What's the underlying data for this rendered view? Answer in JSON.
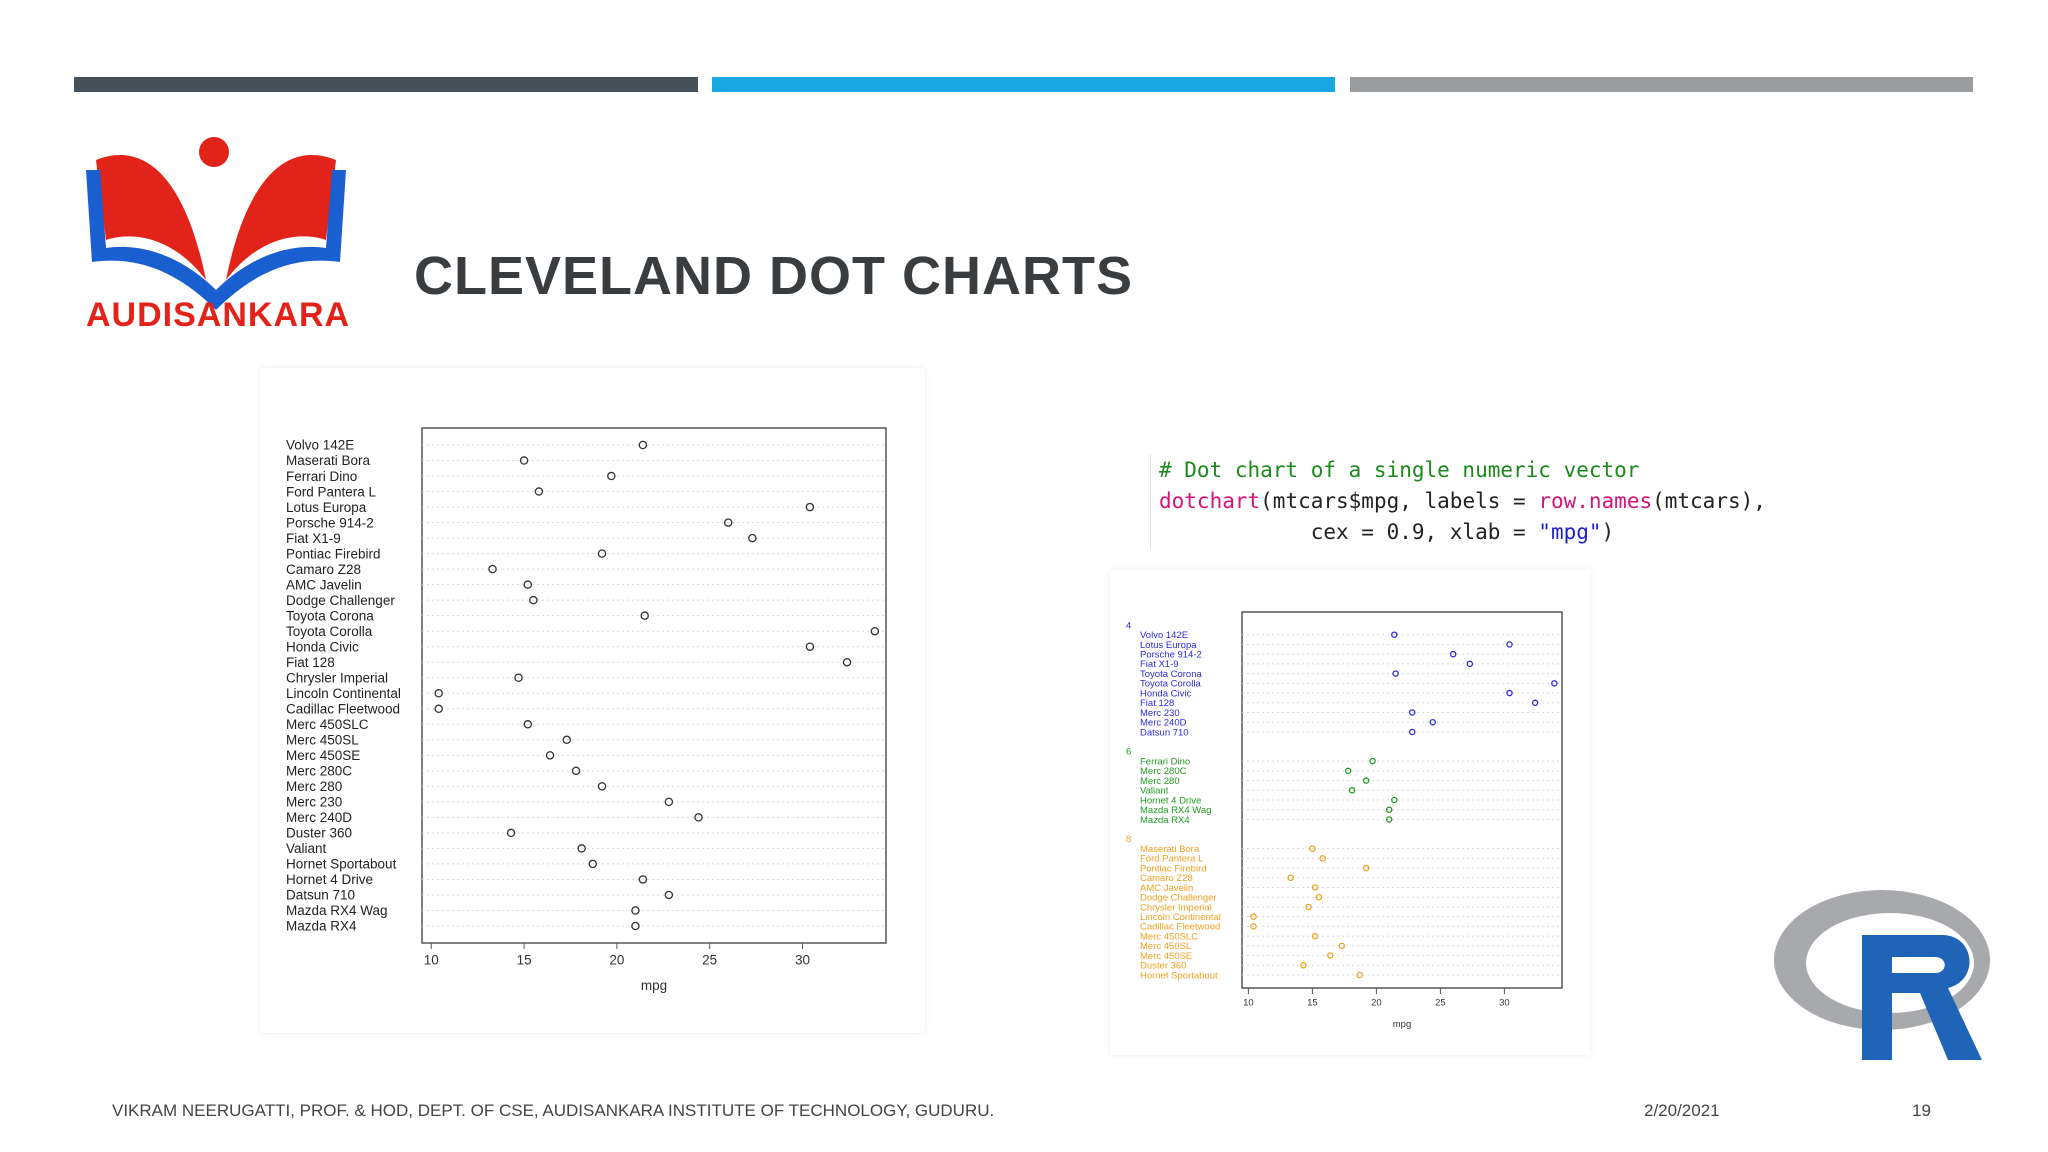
{
  "slide": {
    "title": "CLEVELAND DOT CHARTS",
    "logo_text": "AUDISANKARA",
    "footer_author": "VIKRAM NEERUGATTI, PROF. & HOD, DEPT. OF CSE, AUDISANKARA INSTITUTE OF TECHNOLOGY, GUDURU.",
    "footer_date": "2/20/2021",
    "footer_page": "19",
    "colors": {
      "bar_dark": "#465058",
      "bar_blue": "#1aa8e0",
      "bar_gray": "#9a9d9f",
      "logo_red": "#e2231a",
      "logo_blue": "#1a5fd0"
    }
  },
  "code": {
    "comment": "# Dot chart of a single numeric vector",
    "func": "dotchart",
    "arg1": "(mtcars$mpg, labels = ",
    "func2": "row.names",
    "arg2": "(mtcars),",
    "line2": "cex = 0.9, xlab = ",
    "str": "\"mpg\"",
    "close": ")"
  },
  "chart_data": [
    {
      "type": "scatter",
      "title": "",
      "xlabel": "mpg",
      "ylabel": "",
      "xlim": [
        9.5,
        34.5
      ],
      "xticks": [
        10,
        15,
        20,
        25,
        30
      ],
      "categories": [
        "Volvo 142E",
        "Maserati Bora",
        "Ferrari Dino",
        "Ford Pantera L",
        "Lotus Europa",
        "Porsche 914-2",
        "Fiat X1-9",
        "Pontiac Firebird",
        "Camaro Z28",
        "AMC Javelin",
        "Dodge Challenger",
        "Toyota Corona",
        "Toyota Corolla",
        "Honda Civic",
        "Fiat 128",
        "Chrysler Imperial",
        "Lincoln Continental",
        "Cadillac Fleetwood",
        "Merc 450SLC",
        "Merc 450SL",
        "Merc 450SE",
        "Merc 280C",
        "Merc 280",
        "Merc 230",
        "Merc 240D",
        "Duster 360",
        "Valiant",
        "Hornet Sportabout",
        "Hornet 4 Drive",
        "Datsun 710",
        "Mazda RX4 Wag",
        "Mazda RX4"
      ],
      "values": [
        21.4,
        15.0,
        19.7,
        15.8,
        30.4,
        26.0,
        27.3,
        19.2,
        13.3,
        15.2,
        15.5,
        21.5,
        33.9,
        30.4,
        32.4,
        14.7,
        10.4,
        10.4,
        15.2,
        17.3,
        16.4,
        17.8,
        19.2,
        22.8,
        24.4,
        14.3,
        18.1,
        18.7,
        21.4,
        22.8,
        21.0,
        21.0
      ]
    },
    {
      "type": "scatter",
      "title": "",
      "xlabel": "mpg",
      "ylabel": "",
      "xlim": [
        9.5,
        34.5
      ],
      "xticks": [
        10,
        15,
        20,
        25,
        30
      ],
      "series": [
        {
          "name": "4",
          "color": "#2b2bd9",
          "categories": [
            "Volvo 142E",
            "Lotus Europa",
            "Porsche 914-2",
            "Fiat X1-9",
            "Toyota Corona",
            "Toyota Corolla",
            "Honda Civic",
            "Fiat 128",
            "Merc 230",
            "Merc 240D",
            "Datsun 710"
          ],
          "values": [
            21.4,
            30.4,
            26.0,
            27.3,
            21.5,
            33.9,
            30.4,
            32.4,
            22.8,
            24.4,
            22.8
          ]
        },
        {
          "name": "6",
          "color": "#1f9a1f",
          "categories": [
            "Ferrari Dino",
            "Merc 280C",
            "Merc 280",
            "Valiant",
            "Hornet 4 Drive",
            "Mazda RX4 Wag",
            "Mazda RX4"
          ],
          "values": [
            19.7,
            17.8,
            19.2,
            18.1,
            21.4,
            21.0,
            21.0
          ]
        },
        {
          "name": "8",
          "color": "#f0a020",
          "categories": [
            "Maserati Bora",
            "Ford Pantera L",
            "Pontiac Firebird",
            "Camaro Z28",
            "AMC Javelin",
            "Dodge Challenger",
            "Chrysler Imperial",
            "Lincoln Continental",
            "Cadillac Fleetwood",
            "Merc 450SLC",
            "Merc 450SL",
            "Merc 450SE",
            "Duster 360",
            "Hornet Sportabout"
          ],
          "values": [
            15.0,
            15.8,
            19.2,
            13.3,
            15.2,
            15.5,
            14.7,
            10.4,
            10.4,
            15.2,
            17.3,
            16.4,
            14.3,
            18.7
          ]
        }
      ]
    }
  ]
}
